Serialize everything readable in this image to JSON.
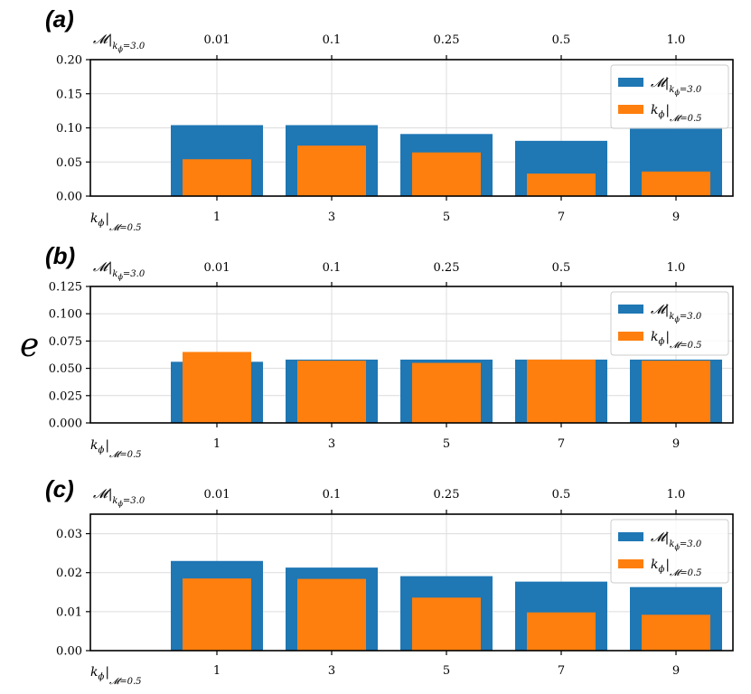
{
  "figure": {
    "ylabel": "e",
    "colors": {
      "blue": "#1f77b4",
      "orange": "#ff7f0e",
      "grid": "#dcdcdc"
    }
  },
  "chart_data": [
    {
      "type": "bar",
      "panel_label": "(a)",
      "bottom_axis": {
        "name": "k",
        "sub": "ϕ",
        "cond": "𝓜=0.5",
        "ticks": [
          "1",
          "3",
          "5",
          "7",
          "9"
        ]
      },
      "top_axis": {
        "name": "𝓜",
        "cond": "k",
        "cond_sub": "ϕ",
        "cond_rest": "=3.0",
        "ticks": [
          "0.01",
          "0.1",
          "0.25",
          "0.5",
          "1.0"
        ]
      },
      "ylim": [
        0,
        0.2
      ],
      "yticks": [
        0,
        0.05,
        0.1,
        0.15,
        0.2
      ],
      "ytick_labels": [
        "0.00",
        "0.05",
        "0.10",
        "0.15",
        "0.20"
      ],
      "series": [
        {
          "name": "𝓜|kϕ=3.0",
          "color": "#1f77b4",
          "values": [
            0.104,
            0.104,
            0.091,
            0.081,
            0.101
          ]
        },
        {
          "name": "kϕ|𝓜=0.5",
          "color": "#ff7f0e",
          "values": [
            0.054,
            0.074,
            0.064,
            0.033,
            0.036
          ]
        }
      ],
      "legend_position": "top-right"
    },
    {
      "type": "bar",
      "panel_label": "(b)",
      "bottom_axis": {
        "name": "k",
        "sub": "ϕ",
        "cond": "𝓜=0.5",
        "ticks": [
          "1",
          "3",
          "5",
          "7",
          "9"
        ]
      },
      "top_axis": {
        "name": "𝓜",
        "cond": "k",
        "cond_sub": "ϕ",
        "cond_rest": "=3.0",
        "ticks": [
          "0.01",
          "0.1",
          "0.25",
          "0.5",
          "1.0"
        ]
      },
      "ylim": [
        0,
        0.125
      ],
      "yticks": [
        0,
        0.025,
        0.05,
        0.075,
        0.1,
        0.125
      ],
      "ytick_labels": [
        "0.000",
        "0.025",
        "0.050",
        "0.075",
        "0.100",
        "0.125"
      ],
      "series": [
        {
          "name": "𝓜|kϕ=3.0",
          "color": "#1f77b4",
          "values": [
            0.056,
            0.058,
            0.058,
            0.058,
            0.058
          ]
        },
        {
          "name": "kϕ|𝓜=0.5",
          "color": "#ff7f0e",
          "values": [
            0.065,
            0.057,
            0.055,
            0.058,
            0.057
          ]
        }
      ],
      "legend_position": "top-right"
    },
    {
      "type": "bar",
      "panel_label": "(c)",
      "bottom_axis": {
        "name": "k",
        "sub": "ϕ",
        "cond": "𝓜=0.5",
        "ticks": [
          "1",
          "3",
          "5",
          "7",
          "9"
        ]
      },
      "top_axis": {
        "name": "𝓜",
        "cond": "k",
        "cond_sub": "ϕ",
        "cond_rest": "=3.0",
        "ticks": [
          "0.01",
          "0.1",
          "0.25",
          "0.5",
          "1.0"
        ]
      },
      "ylim": [
        0,
        0.035
      ],
      "yticks": [
        0,
        0.01,
        0.02,
        0.03
      ],
      "ytick_labels": [
        "0.00",
        "0.01",
        "0.02",
        "0.03"
      ],
      "series": [
        {
          "name": "𝓜|kϕ=3.0",
          "color": "#1f77b4",
          "values": [
            0.023,
            0.0213,
            0.0191,
            0.0177,
            0.0163
          ]
        },
        {
          "name": "kϕ|𝓜=0.5",
          "color": "#ff7f0e",
          "values": [
            0.0185,
            0.0184,
            0.0136,
            0.0098,
            0.0092
          ]
        }
      ],
      "legend_position": "top-right"
    }
  ]
}
